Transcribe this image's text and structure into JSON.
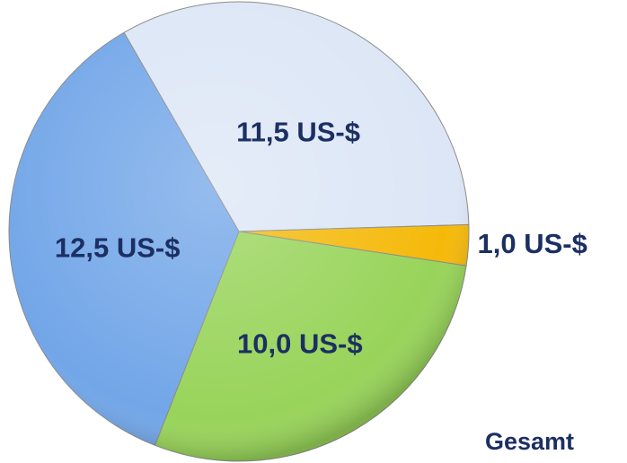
{
  "chart_data": {
    "type": "pie",
    "values": [
      11.5,
      1.0,
      10.0,
      12.5
    ],
    "value_labels": [
      "11,5 US-$",
      "1,0 US-$",
      "10,0 US-$",
      "12,5 US-$"
    ],
    "colors": [
      "#dce6f6",
      "#f5b90a",
      "#98d45a",
      "#72a6e8"
    ],
    "annotation": "Gesamt"
  }
}
